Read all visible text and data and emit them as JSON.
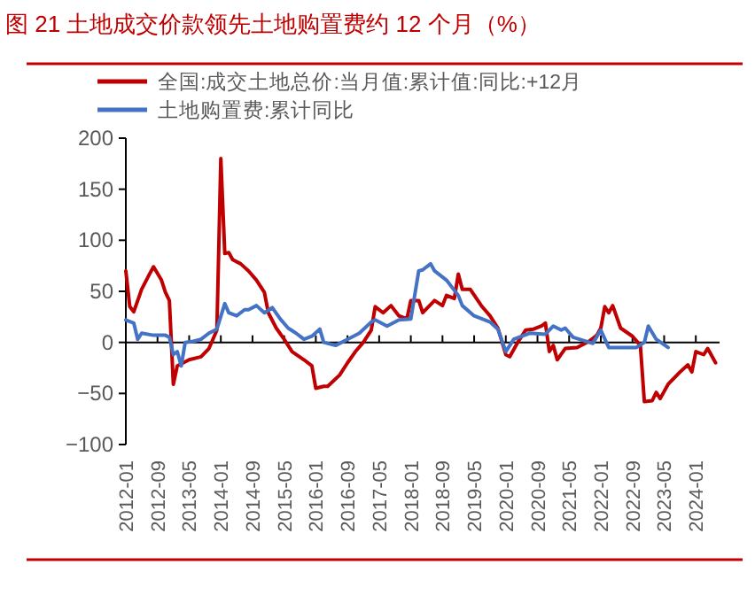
{
  "chart_data": {
    "type": "line",
    "title": "图 21 土地成交价款领先土地购置费约 12 个月（%）",
    "series": [
      {
        "name": "全国:成交土地总价:当月值:累计值:同比:+12月",
        "color": "#c00000",
        "x": [
          "2012-01",
          "2012-02",
          "2012-03",
          "2012-05",
          "2012-07",
          "2012-08",
          "2012-10",
          "2012-11",
          "2012-12",
          "2013-01",
          "2013-02",
          "2013-05",
          "2013-08",
          "2013-10",
          "2013-11",
          "2013-12",
          "2014-01",
          "2014-02",
          "2014-03",
          "2014-04",
          "2014-06",
          "2014-08",
          "2014-10",
          "2014-12",
          "2015-01",
          "2015-03",
          "2015-05",
          "2015-07",
          "2015-10",
          "2015-12",
          "2016-01",
          "2016-03",
          "2016-04",
          "2016-07",
          "2016-09",
          "2016-11",
          "2017-01",
          "2017-03",
          "2017-04",
          "2017-06",
          "2017-08",
          "2017-10",
          "2017-12",
          "2018-01",
          "2018-03",
          "2018-04",
          "2018-07",
          "2018-09",
          "2018-10",
          "2018-12",
          "2019-01",
          "2019-02",
          "2019-04",
          "2019-07",
          "2019-09",
          "2019-11",
          "2020-01",
          "2020-02",
          "2020-04",
          "2020-06",
          "2020-08",
          "2020-10",
          "2020-11",
          "2020-12",
          "2021-01",
          "2021-02",
          "2021-04",
          "2021-07",
          "2021-10",
          "2021-12",
          "2022-01",
          "2022-02",
          "2022-03",
          "2022-04",
          "2022-06",
          "2022-09",
          "2022-11",
          "2022-12",
          "2023-02",
          "2023-03",
          "2023-04",
          "2023-06",
          "2023-09",
          "2023-11",
          "2023-12",
          "2024-01",
          "2024-03",
          "2024-04",
          "2024-06"
        ],
        "values": [
          70,
          35,
          30,
          52,
          67,
          74,
          61,
          49,
          41,
          -41,
          -23,
          -17,
          -14,
          -6,
          3,
          12,
          180,
          87,
          88,
          81,
          77,
          70,
          61,
          49,
          29,
          14,
          3,
          -9,
          -17,
          -23,
          -45,
          -43,
          -43,
          -32,
          -20,
          -9,
          0,
          12,
          35,
          29,
          36,
          26,
          23,
          41,
          41,
          29,
          41,
          36,
          46,
          43,
          67,
          52,
          52,
          35,
          26,
          14,
          -12,
          -14,
          0,
          12,
          13,
          16,
          19,
          -9,
          -3,
          -17,
          -6,
          -5,
          1,
          7,
          14,
          35,
          29,
          36,
          14,
          6,
          -3,
          -58,
          -57,
          -49,
          -55,
          -41,
          -29,
          -22,
          -29,
          -9,
          -12,
          -6,
          -20
        ]
      },
      {
        "name": "土地购置费:累计同比",
        "color": "#4472c4",
        "x": [
          "2012-01",
          "2012-03",
          "2012-04",
          "2012-05",
          "2012-08",
          "2012-11",
          "2012-12",
          "2013-01",
          "2013-02",
          "2013-03",
          "2013-04",
          "2013-06",
          "2013-08",
          "2013-10",
          "2013-12",
          "2014-02",
          "2014-03",
          "2014-05",
          "2014-07",
          "2014-08",
          "2014-10",
          "2014-12",
          "2015-02",
          "2015-04",
          "2015-06",
          "2015-08",
          "2015-10",
          "2015-12",
          "2016-02",
          "2016-03",
          "2016-06",
          "2016-09",
          "2016-12",
          "2017-03",
          "2017-04",
          "2017-07",
          "2017-10",
          "2018-01",
          "2018-03",
          "2018-04",
          "2018-06",
          "2018-07",
          "2018-10",
          "2019-01",
          "2019-02",
          "2019-05",
          "2019-09",
          "2019-11",
          "2020-01",
          "2020-03",
          "2020-07",
          "2020-11",
          "2021-01",
          "2021-03",
          "2021-04",
          "2021-06",
          "2021-11",
          "2022-01",
          "2022-03",
          "2022-10",
          "2022-12",
          "2023-01",
          "2023-03",
          "2023-06"
        ],
        "values": [
          22,
          19,
          3,
          9,
          7,
          7,
          5,
          -12,
          -9,
          -23,
          0,
          1,
          3,
          9,
          13,
          38,
          29,
          26,
          32,
          32,
          36,
          29,
          34,
          23,
          14,
          9,
          3,
          6,
          13,
          0,
          -3,
          3,
          9,
          20,
          22,
          16,
          22,
          23,
          70,
          71,
          77,
          70,
          61,
          46,
          36,
          26,
          20,
          13,
          -9,
          3,
          9,
          8,
          16,
          12,
          14,
          5,
          -1,
          12,
          -5,
          -5,
          0,
          16,
          3,
          -5
        ]
      }
    ],
    "xlim": [
      "2012-01",
      "2024-07"
    ],
    "xticks": [
      "2012-01",
      "2012-09",
      "2013-05",
      "2014-01",
      "2014-09",
      "2015-05",
      "2016-01",
      "2016-09",
      "2017-05",
      "2018-01",
      "2018-09",
      "2019-05",
      "2020-01",
      "2020-09",
      "2021-05",
      "2022-01",
      "2022-09",
      "2023-05",
      "2024-01"
    ],
    "ylim": [
      -100,
      200
    ],
    "yticks": [
      -100,
      -50,
      0,
      50,
      100,
      150,
      200
    ],
    "legend": "top",
    "marker": "none",
    "line_style": "solid"
  }
}
